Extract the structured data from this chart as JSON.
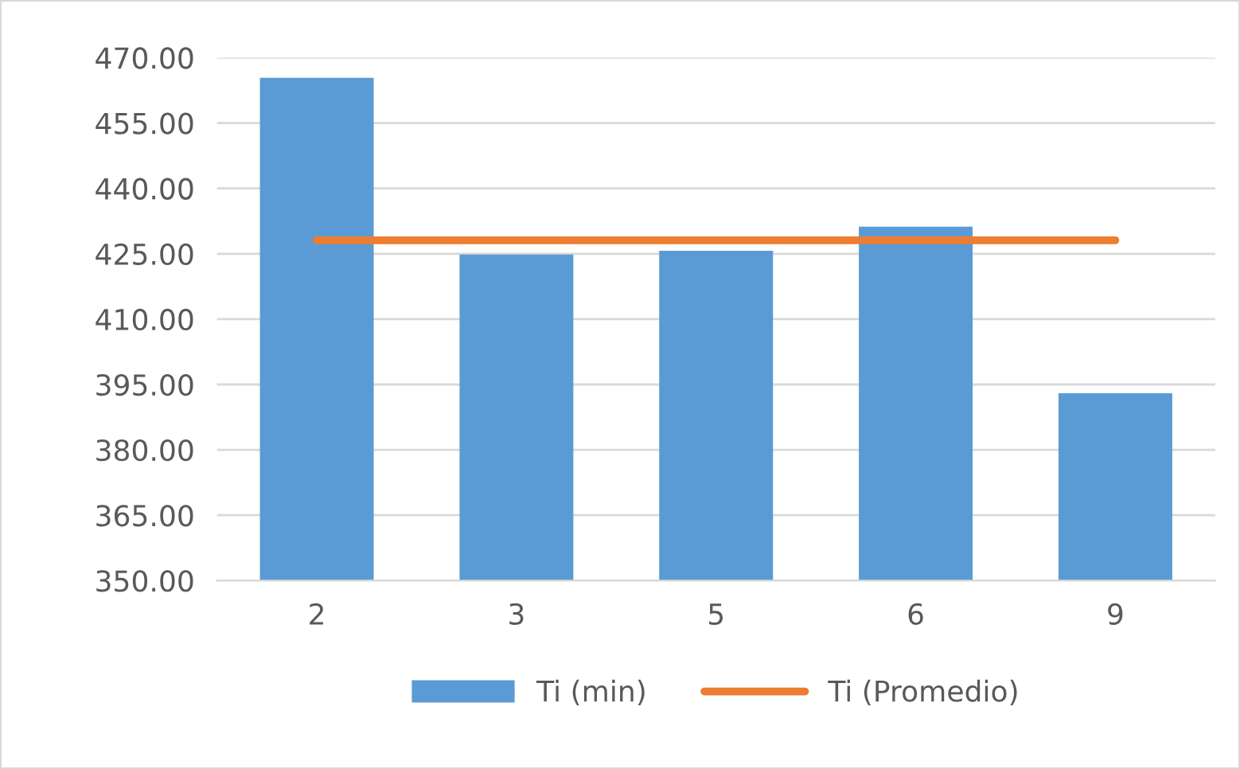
{
  "chart_data": {
    "type": "bar",
    "categories": [
      "2",
      "3",
      "5",
      "6",
      "9"
    ],
    "series": [
      {
        "name": "Ti (min)",
        "color": "#5b9bd5",
        "values": [
          465.4,
          424.8,
          425.7,
          431.2,
          393.0
        ]
      },
      {
        "name": "Ti (Promedio)",
        "type": "line",
        "color": "#ed7d31",
        "values": [
          428.1,
          428.1,
          428.1,
          428.1,
          428.1
        ]
      }
    ],
    "ylim": [
      350,
      470
    ],
    "yticks": [
      {
        "value": 350,
        "label": "350.00"
      },
      {
        "value": 365,
        "label": "365.00"
      },
      {
        "value": 380,
        "label": "380.00"
      },
      {
        "value": 395,
        "label": "395.00"
      },
      {
        "value": 410,
        "label": "410.00"
      },
      {
        "value": 425,
        "label": "425.00"
      },
      {
        "value": 440,
        "label": "440.00"
      },
      {
        "value": 455,
        "label": "455.00"
      },
      {
        "value": 470,
        "label": "470.00"
      }
    ],
    "grid": "y",
    "legend": "bottom",
    "marker": "none"
  }
}
